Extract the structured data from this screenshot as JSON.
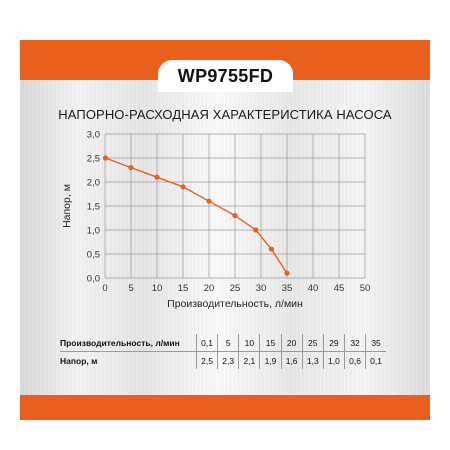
{
  "colors": {
    "accent": "#e8601c",
    "grid": "#9a9a9a",
    "text": "#111111"
  },
  "model": "WP9755FD",
  "chart_data": {
    "type": "line",
    "title": "НАПОРНО-РАСХОДНАЯ ХАРАКТЕРИСТИКА НАСОСА",
    "xlabel": "Производительность, л/мин",
    "ylabel": "Напор, м",
    "xlim": [
      0,
      50
    ],
    "ylim": [
      0,
      3.0
    ],
    "x_ticks": [
      "0",
      "5",
      "10",
      "15",
      "20",
      "25",
      "30",
      "35",
      "40",
      "45",
      "50"
    ],
    "y_ticks": [
      "0,0",
      "0,5",
      "1,0",
      "1,5",
      "2,0",
      "2,5",
      "3,0"
    ],
    "grid": true,
    "series": [
      {
        "x": [
          0.1,
          5,
          10,
          15,
          20,
          25,
          29,
          32,
          35
        ],
        "y": [
          2.5,
          2.3,
          2.1,
          1.9,
          1.6,
          1.3,
          1.0,
          0.6,
          0.1
        ]
      }
    ]
  },
  "table": {
    "rows": [
      {
        "label": "Производительность, л/мин",
        "values": [
          "0,1",
          "5",
          "10",
          "15",
          "20",
          "25",
          "29",
          "32",
          "35"
        ]
      },
      {
        "label": "Напор, м",
        "values": [
          "2,5",
          "2,3",
          "2,1",
          "1,9",
          "1,6",
          "1,3",
          "1,0",
          "0,6",
          "0,1"
        ]
      }
    ]
  }
}
